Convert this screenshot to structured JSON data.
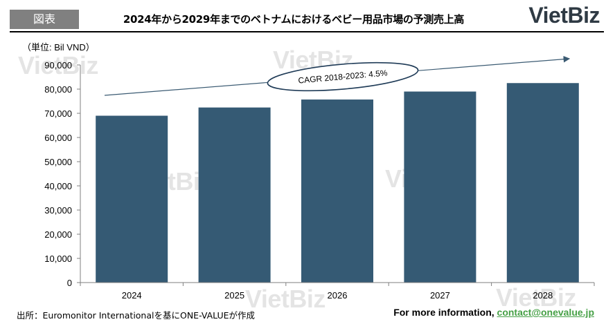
{
  "header": {
    "badge": "図表",
    "title": "2024年から2029年までのベトナムにおけるベビー用品市場の予測売上高",
    "logo": "VietBiz"
  },
  "watermark": {
    "text": "VietBiz"
  },
  "chart_data": {
    "type": "bar",
    "unit_label": "（単位: Bil VND）",
    "categories": [
      "2024",
      "2025",
      "2026",
      "2027",
      "2028"
    ],
    "values": [
      69000,
      72400,
      75700,
      79000,
      82500
    ],
    "ylim": [
      0,
      90000
    ],
    "yticks": [
      0,
      10000,
      20000,
      30000,
      40000,
      50000,
      60000,
      70000,
      80000,
      90000
    ],
    "ytick_labels": [
      "0",
      "10,000",
      "20,000",
      "30,000",
      "40,000",
      "50,000",
      "60,000",
      "70,000",
      "80,000",
      "90,000"
    ],
    "bar_color": "#355a74",
    "grid": false,
    "annotation": "CAGR 2018-2023: 4.5%"
  },
  "footer": {
    "source": "出所：Euromonitor Internationalを基にONE-VALUEが作成",
    "contact_prefix": "For more information, ",
    "contact_email": "contact@onevalue.jp",
    "contact_color": "#46a046"
  }
}
